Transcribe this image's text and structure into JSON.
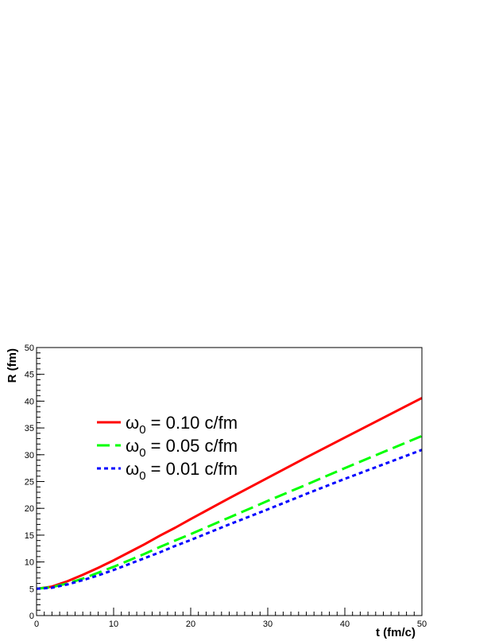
{
  "chart_data": {
    "type": "line",
    "title": "",
    "xlabel": "t (fm/c)",
    "ylabel": "R (fm)",
    "xlim": [
      0,
      50
    ],
    "ylim": [
      0,
      50
    ],
    "x_ticks": [
      0,
      10,
      20,
      30,
      40,
      50
    ],
    "y_ticks": [
      0,
      5,
      10,
      15,
      20,
      25,
      30,
      35,
      40,
      45,
      50
    ],
    "grid": false,
    "legend_position": "left-center",
    "x": [
      0,
      2,
      4,
      6,
      8,
      10,
      12,
      14,
      16,
      18,
      20,
      25,
      30,
      35,
      40,
      45,
      50
    ],
    "series": [
      {
        "name": "ω0 = 0.10 c/fm",
        "legend": {
          "symbol": "ω",
          "sub": "0",
          "rest": " = 0.10 c/fm"
        },
        "color": "#ff0000",
        "dash": "solid",
        "values": [
          5.0,
          5.4,
          6.4,
          7.6,
          8.9,
          10.3,
          11.8,
          13.3,
          14.9,
          16.4,
          18.0,
          21.9,
          25.7,
          29.5,
          33.2,
          36.9,
          40.6
        ]
      },
      {
        "name": "ω0 = 0.05 c/fm",
        "legend": {
          "symbol": "ω",
          "sub": "0",
          "rest": " = 0.05 c/fm"
        },
        "color": "#00ff00",
        "dash": "long-dash",
        "values": [
          5.0,
          5.3,
          6.0,
          6.9,
          8.0,
          9.1,
          10.3,
          11.5,
          12.8,
          14.0,
          15.2,
          18.3,
          21.4,
          24.4,
          27.5,
          30.5,
          33.5
        ]
      },
      {
        "name": "ω0 = 0.01 c/fm",
        "legend": {
          "symbol": "ω",
          "sub": "0",
          "rest": " = 0.01 c/fm"
        },
        "color": "#0000ff",
        "dash": "short-dash",
        "values": [
          5.0,
          5.2,
          5.8,
          6.6,
          7.5,
          8.5,
          9.6,
          10.7,
          11.8,
          13.0,
          14.1,
          17.0,
          19.8,
          22.7,
          25.5,
          28.2,
          30.9
        ]
      }
    ]
  }
}
